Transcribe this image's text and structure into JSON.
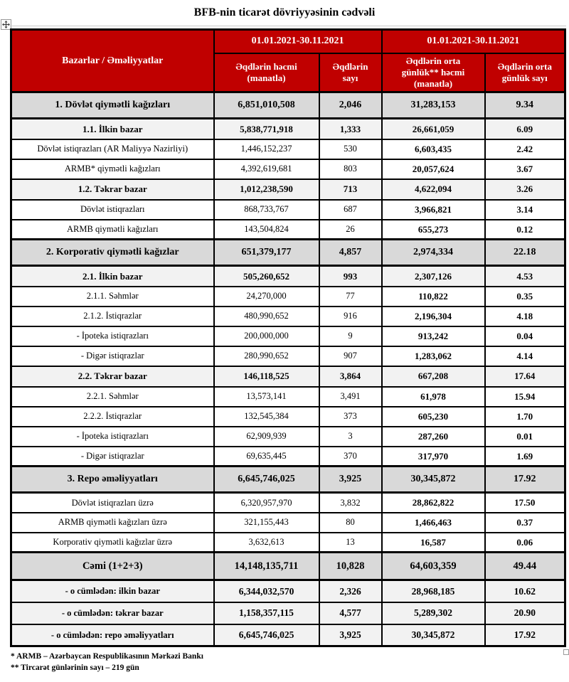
{
  "page": {
    "title": "BFB-nin ticarət dövriyyəsinin cədvəli",
    "footnote_1": "* ARMB – Azərbaycan Respublikasının Mərkəzi Bankı",
    "footnote_2": "** Tircarət günlərinin sayı – 219 gün"
  },
  "colors": {
    "header_red": "#C00000",
    "section_gray": "#D9D9D9",
    "subsection_gray": "#F2F2F2",
    "border_black": "#000000",
    "header_text": "#FFFFFF"
  },
  "icons": {
    "move_handle": "table-move-handle-icon",
    "resize_handle": "table-resize-handle-icon"
  },
  "table": {
    "corner_label": "Bazarlar / Əməliyyatlar",
    "period_headers": [
      "01.01.2021-30.11.2021",
      "01.01.2021-30.11.2021"
    ],
    "column_headers": [
      "Əqdlərin həcmi (manatla)",
      "Əqdlərin sayı",
      "Əqdlərin orta günlük** həcmi (manatla)",
      "Əqdlərin orta günlük sayı"
    ],
    "rows": [
      {
        "type": "section",
        "label": "1. Dövlət qiymətli kağızları",
        "values": [
          "6,851,010,508",
          "2,046",
          "31,283,153",
          "9.34"
        ]
      },
      {
        "type": "subsection",
        "label": "1.1. İlkin bazar",
        "values": [
          "5,838,771,918",
          "1,333",
          "26,661,059",
          "6.09"
        ]
      },
      {
        "type": "plain",
        "label": "Dövlət istiqrazları (AR Maliyyə Nazirliyi)",
        "values": [
          "1,446,152,237",
          "530",
          "6,603,435",
          "2.42"
        ]
      },
      {
        "type": "plain",
        "label": "ARMB* qiymətli kağızları",
        "values": [
          "4,392,619,681",
          "803",
          "20,057,624",
          "3.67"
        ]
      },
      {
        "type": "subsection",
        "label": "1.2. Təkrar bazar",
        "values": [
          "1,012,238,590",
          "713",
          "4,622,094",
          "3.26"
        ]
      },
      {
        "type": "plain",
        "label": "Dövlət istiqrazları",
        "values": [
          "868,733,767",
          "687",
          "3,966,821",
          "3.14"
        ]
      },
      {
        "type": "plain",
        "label": "ARMB qiymətli kağızları",
        "values": [
          "143,504,824",
          "26",
          "655,273",
          "0.12"
        ]
      },
      {
        "type": "section",
        "label": "2. Korporativ qiymətli kağızlar",
        "values": [
          "651,379,177",
          "4,857",
          "2,974,334",
          "22.18"
        ]
      },
      {
        "type": "subsection",
        "label": "2.1. İlkin bazar",
        "values": [
          "505,260,652",
          "993",
          "2,307,126",
          "4.53"
        ]
      },
      {
        "type": "plain",
        "label": "2.1.1. Səhmlər",
        "values": [
          "24,270,000",
          "77",
          "110,822",
          "0.35"
        ]
      },
      {
        "type": "plain",
        "label": "2.1.2. İstiqrazlar",
        "values": [
          "480,990,652",
          "916",
          "2,196,304",
          "4.18"
        ]
      },
      {
        "type": "plain",
        "label": "- İpoteka istiqrazları",
        "values": [
          "200,000,000",
          "9",
          "913,242",
          "0.04"
        ]
      },
      {
        "type": "plain",
        "label": "- Digər istiqrazlar",
        "values": [
          "280,990,652",
          "907",
          "1,283,062",
          "4.14"
        ]
      },
      {
        "type": "subsection",
        "label": "2.2. Təkrar bazar",
        "values": [
          "146,118,525",
          "3,864",
          "667,208",
          "17.64"
        ]
      },
      {
        "type": "plain",
        "label": "2.2.1. Səhmlər",
        "values": [
          "13,573,141",
          "3,491",
          "61,978",
          "15.94"
        ]
      },
      {
        "type": "plain",
        "label": "2.2.2. İstiqrazlar",
        "values": [
          "132,545,384",
          "373",
          "605,230",
          "1.70"
        ]
      },
      {
        "type": "plain",
        "label": "- İpoteka istiqrazları",
        "values": [
          "62,909,939",
          "3",
          "287,260",
          "0.01"
        ]
      },
      {
        "type": "plain",
        "label": "- Digər istiqrazlar",
        "values": [
          "69,635,445",
          "370",
          "317,970",
          "1.69"
        ]
      },
      {
        "type": "section",
        "label": "3. Repo əməliyyatları",
        "values": [
          "6,645,746,025",
          "3,925",
          "30,345,872",
          "17.92"
        ]
      },
      {
        "type": "plain",
        "label": "Dövlət istiqrazları üzrə",
        "values": [
          "6,320,957,970",
          "3,832",
          "28,862,822",
          "17.50"
        ]
      },
      {
        "type": "plain",
        "label": "ARMB qiymətli kağızları üzrə",
        "values": [
          "321,155,443",
          "80",
          "1,466,463",
          "0.37"
        ]
      },
      {
        "type": "plain",
        "label": "Korporativ qiymətli kağızlar üzrə",
        "values": [
          "3,632,613",
          "13",
          "16,587",
          "0.06"
        ]
      },
      {
        "type": "total",
        "label": "Cəmi (1+2+3)",
        "values": [
          "14,148,135,711",
          "10,828",
          "64,603,359",
          "49.44"
        ]
      },
      {
        "type": "subtotal",
        "label": "- o cümlədən: ilkin bazar",
        "values": [
          "6,344,032,570",
          "2,326",
          "28,968,185",
          "10.62"
        ]
      },
      {
        "type": "subtotal",
        "label": "- o cümlədən: təkrar bazar",
        "values": [
          "1,158,357,115",
          "4,577",
          "5,289,302",
          "20.90"
        ]
      },
      {
        "type": "subtotal",
        "label": "- o cümlədən: repo əməliyyatları",
        "values": [
          "6,645,746,025",
          "3,925",
          "30,345,872",
          "17.92"
        ]
      }
    ]
  }
}
